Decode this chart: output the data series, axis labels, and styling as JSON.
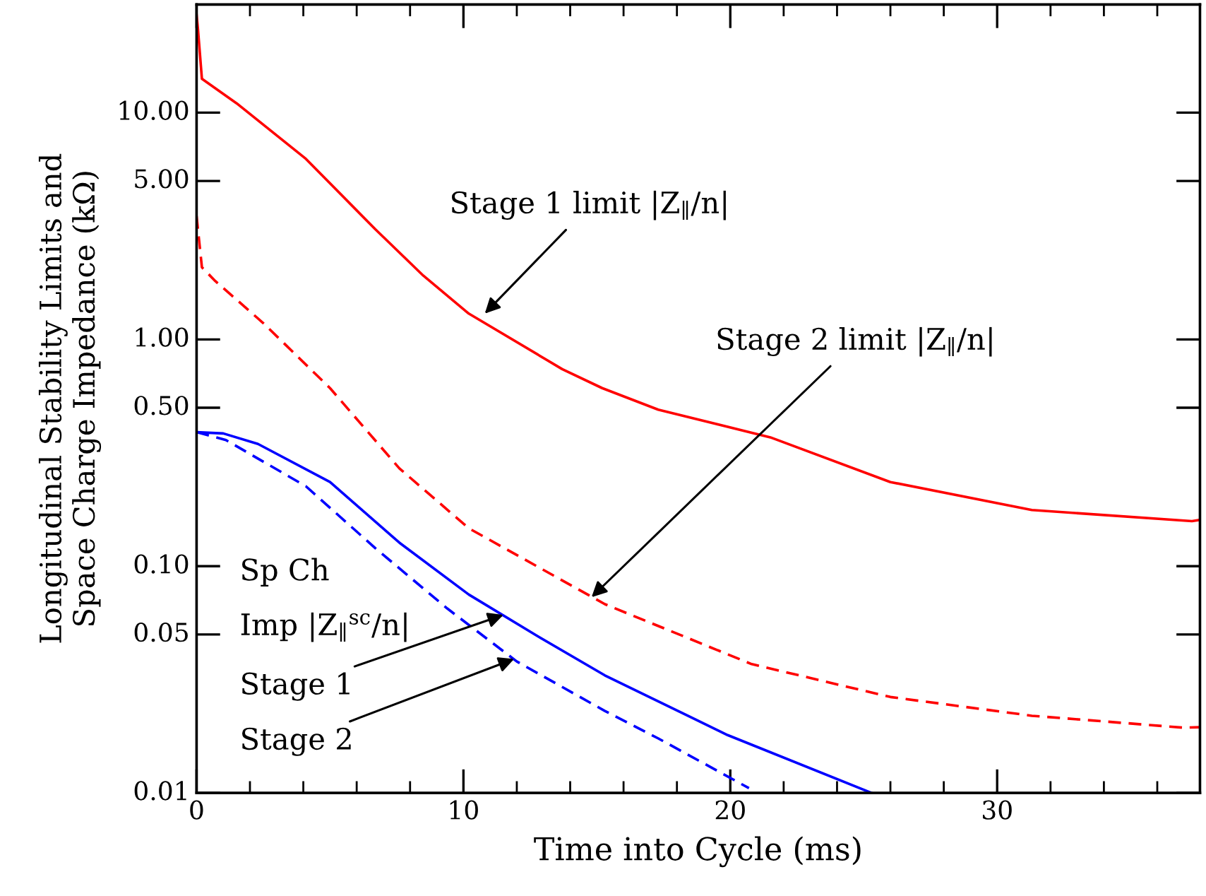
{
  "chart_data": {
    "type": "line",
    "xlabel": "Time into Cycle (ms)",
    "ylabel": "Longitudinal Stability Limits and\nSpace Charge Impedance (kΩ)",
    "log": "y",
    "xlim": [
      0,
      37.6
    ],
    "ylim": [
      0.01,
      30
    ],
    "xticks": [
      0,
      10,
      20,
      30
    ],
    "yticks": [
      0.01,
      0.05,
      {
        "value": 0.1,
        "label": "0.10"
      },
      {
        "value": 0.5,
        "label": "0.50"
      },
      {
        "value": 1,
        "label": "1.00"
      },
      {
        "value": 5,
        "label": "5.00"
      },
      {
        "value": 10,
        "label": "10.00"
      }
    ],
    "grid": false,
    "legend": false,
    "marker": "none",
    "series": [
      {
        "color": "#ff0000",
        "line_style": "solid",
        "x": [
          0,
          0.05,
          0.2,
          1.5,
          4.1,
          6.7,
          8.5,
          10.2,
          13.7,
          15.2,
          17.3,
          21.5,
          26,
          31.3,
          37.3,
          37.6
        ],
        "values": [
          27,
          23.5,
          14.1,
          11.0,
          6.25,
          3.06,
          1.91,
          1.3,
          0.74,
          0.61,
          0.49,
          0.37,
          0.235,
          0.177,
          0.158,
          0.16
        ]
      },
      {
        "color": "#ff0000",
        "line_style": "dashed",
        "x": [
          0,
          0.2,
          0.7,
          2.5,
          5,
          7.6,
          10.2,
          15.3,
          20.8,
          26,
          31.3,
          37,
          37.6
        ],
        "values": [
          3.5,
          2.08,
          1.81,
          1.18,
          0.61,
          0.27,
          0.147,
          0.068,
          0.037,
          0.0265,
          0.0219,
          0.0194,
          0.0195
        ]
      },
      {
        "color": "#0000ff",
        "line_style": "solid",
        "x": [
          0,
          1,
          2.3,
          5,
          7.6,
          10.2,
          12.8,
          15.3,
          19.9,
          25.3
        ],
        "values": [
          0.39,
          0.385,
          0.346,
          0.235,
          0.127,
          0.075,
          0.049,
          0.033,
          0.018,
          0.01
        ]
      },
      {
        "color": "#0000ff",
        "line_style": "dashed",
        "x": [
          0,
          1.1,
          4.1,
          6.7,
          9.4,
          12,
          15.3,
          17.3,
          20.7
        ],
        "values": [
          0.39,
          0.36,
          0.225,
          0.12,
          0.065,
          0.038,
          0.023,
          0.0174,
          0.0105
        ]
      }
    ],
    "annotations": [
      {
        "text": "Stage 1 limit |Z$_{∥}$/n|",
        "x": 10.8,
        "y": 1.3
      },
      {
        "text": "Stage 2 limit |Z$_{∥}$/n|",
        "x": 14.8,
        "y": 0.073
      },
      "Sp Ch",
      "Imp |Z$_{∥}$$^{sc}$/n|",
      {
        "text": "Stage 1",
        "x": 11.5,
        "y": 0.061
      },
      {
        "text": "Stage 2",
        "x": 11.9,
        "y": 0.039
      }
    ]
  }
}
